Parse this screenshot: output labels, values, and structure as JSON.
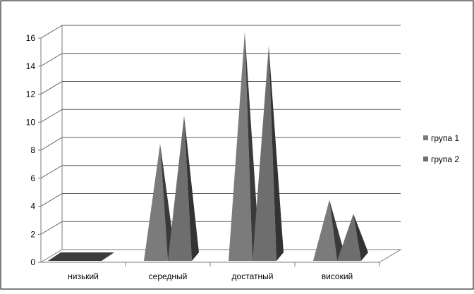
{
  "chart_data": {
    "type": "bar",
    "categories": [
      "низький",
      "середный",
      "достатный",
      "високий"
    ],
    "series": [
      {
        "name": "група 1",
        "values": [
          0,
          8,
          16,
          4
        ]
      },
      {
        "name": "група 2",
        "values": [
          0,
          10,
          15,
          3
        ]
      }
    ],
    "title": "",
    "xlabel": "",
    "ylabel": "",
    "ylim": [
      0,
      16
    ],
    "yticks": [
      0,
      2,
      4,
      6,
      8,
      10,
      12,
      14,
      16
    ],
    "grid": true,
    "legend_position": "right",
    "mark_shape": "3d-pyramid",
    "colors": {
      "series_face": [
        "#7b7b7b",
        "#6e6e6e"
      ],
      "series_shade": [
        "#3a3a3a",
        "#333333"
      ],
      "flat_marker": "#3c3c3c",
      "grid": "#5a5a5a",
      "axis": "#7a7a7a",
      "text": "#000000",
      "frame": "#000000"
    }
  }
}
